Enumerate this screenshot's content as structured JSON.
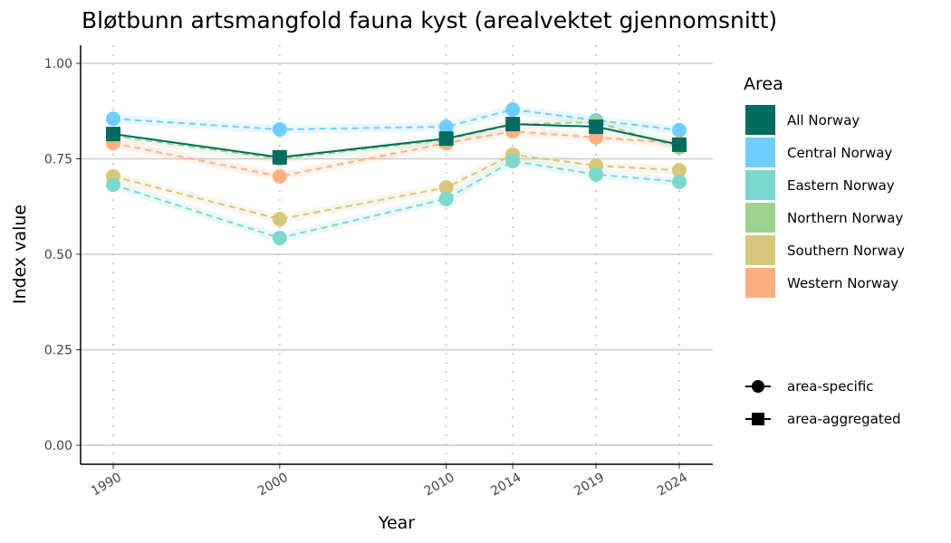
{
  "chart_data": {
    "type": "line",
    "title": "Bløtbunn artsmangfold fauna kyst (arealvektet gjennomsnitt)",
    "xlabel": "Year",
    "ylabel": "Index value",
    "x": [
      1990,
      2000,
      2010,
      2014,
      2019,
      2024
    ],
    "x_tick_labels": [
      "1990",
      "2000",
      "2010",
      "2014",
      "2019",
      "2024"
    ],
    "ylim": [
      0,
      1
    ],
    "y_ticks": [
      0,
      0.25,
      0.5,
      0.75,
      1
    ],
    "y_tick_labels": [
      "0.00",
      "0.25",
      "0.50",
      "0.75",
      "1.00"
    ],
    "legend_title": "Area",
    "legend_placement": "right",
    "series": [
      {
        "name": "Central Norway",
        "color": "#6dcdff",
        "kind": "area-specific",
        "values": [
          0.855,
          0.827,
          0.834,
          0.879,
          0.851,
          0.825
        ]
      },
      {
        "name": "Western Norway",
        "color": "#ffaf7f",
        "kind": "area-specific",
        "values": [
          0.791,
          0.704,
          0.791,
          0.822,
          0.806,
          0.791
        ]
      },
      {
        "name": "Northern Norway",
        "color": "#9bd38f",
        "kind": "area-specific",
        "values": [
          0.81,
          0.75,
          0.8,
          0.84,
          0.846,
          0.78
        ]
      },
      {
        "name": "Southern Norway",
        "color": "#d8c679",
        "kind": "area-specific",
        "values": [
          0.704,
          0.592,
          0.675,
          0.761,
          0.732,
          0.72
        ]
      },
      {
        "name": "Eastern Norway",
        "color": "#7bd8cf",
        "kind": "area-specific",
        "values": [
          0.682,
          0.543,
          0.645,
          0.744,
          0.709,
          0.69
        ]
      },
      {
        "name": "All Norway",
        "color": "#006b5f",
        "kind": "area-aggregated",
        "values": [
          0.815,
          0.754,
          0.803,
          0.841,
          0.834,
          0.787
        ]
      }
    ],
    "legend_items": [
      {
        "name": "All Norway",
        "color": "#006b5f"
      },
      {
        "name": "Central Norway",
        "color": "#6dcdff"
      },
      {
        "name": "Eastern Norway",
        "color": "#7bd8cf"
      },
      {
        "name": "Northern Norway",
        "color": "#9bd38f"
      },
      {
        "name": "Southern Norway",
        "color": "#d8c679"
      },
      {
        "name": "Western Norway",
        "color": "#ffaf7f"
      }
    ],
    "shape_legend": [
      "area-specific",
      "area-aggregated"
    ]
  }
}
